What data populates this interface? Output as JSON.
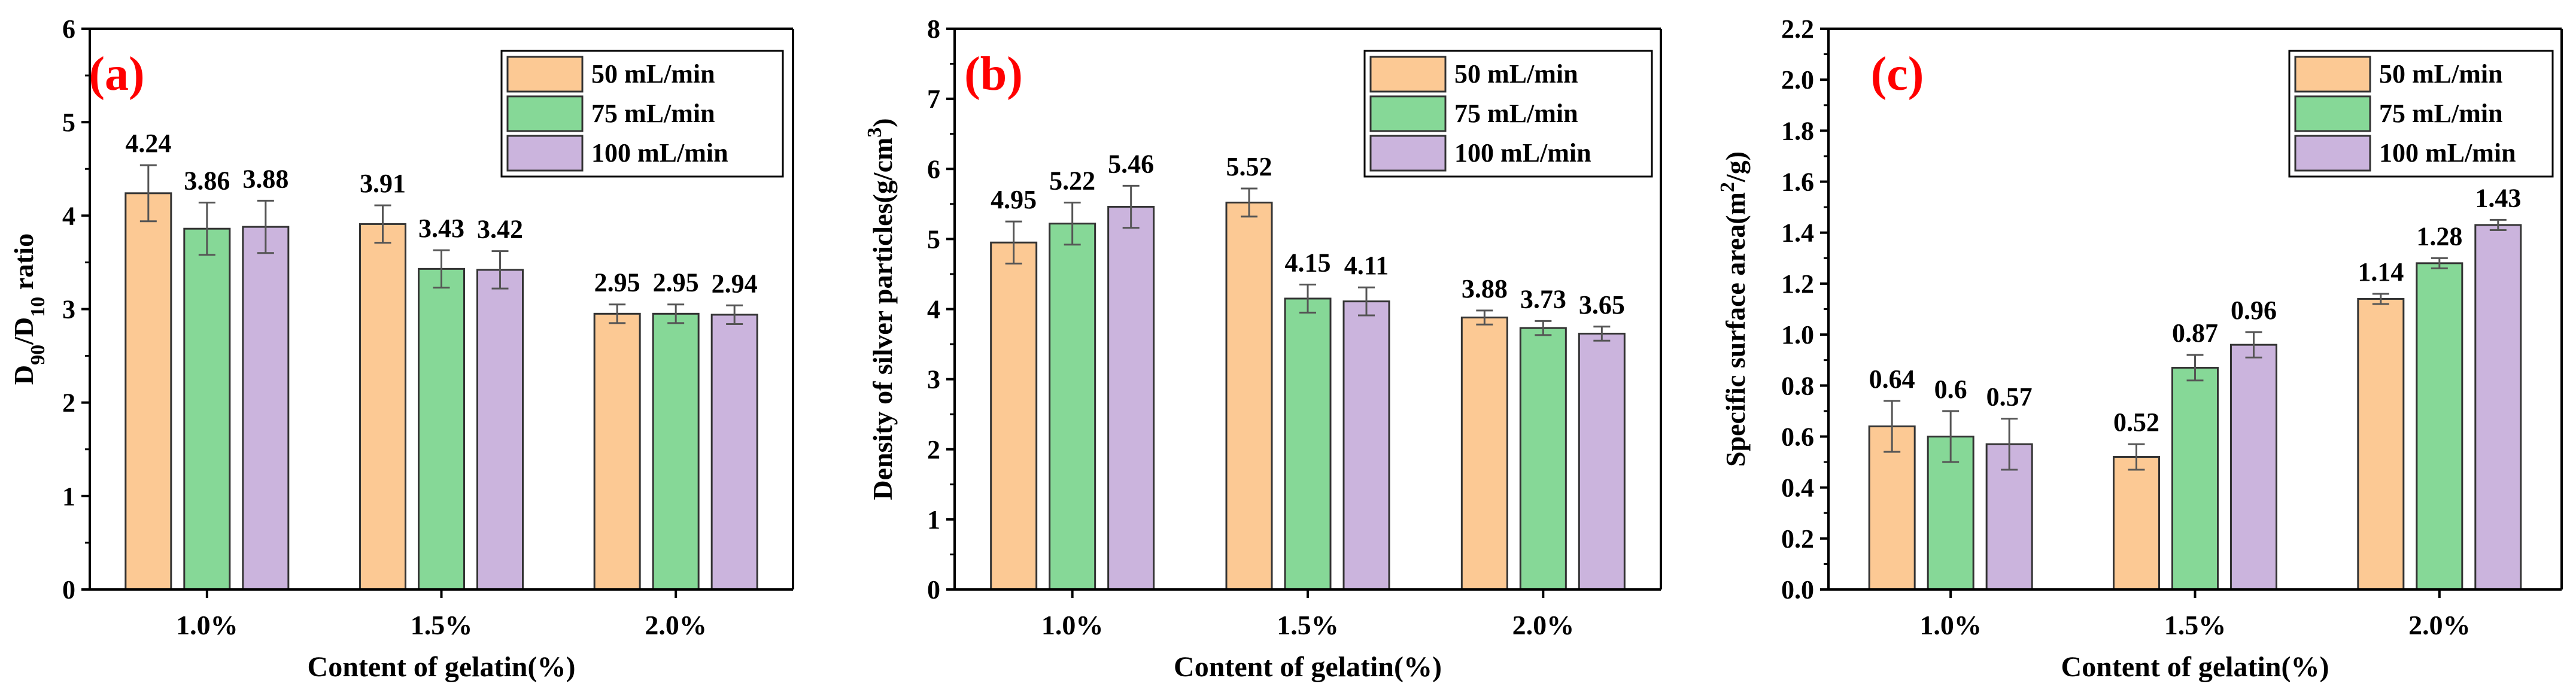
{
  "chart_data": [
    {
      "type": "bar",
      "panel_label": "(a)",
      "title": "",
      "xlabel": "Content of gelatin(%)",
      "ylabel": {
        "parts": [
          {
            "text": "D",
            "sub": false
          },
          {
            "text": "90",
            "sub": true
          },
          {
            "text": "/D",
            "sub": false
          },
          {
            "text": "10",
            "sub": true
          },
          {
            "text": " ratio",
            "sub": false
          }
        ]
      },
      "categories": [
        "1.0%",
        "1.5%",
        "2.0%"
      ],
      "ylim": [
        0,
        6
      ],
      "yticks": [
        "0",
        "1",
        "2",
        "3",
        "4",
        "5",
        "6"
      ],
      "series": [
        {
          "name": "50 mL/min",
          "values": [
            4.24,
            3.91,
            2.95
          ],
          "errors": [
            0.3,
            0.2,
            0.1
          ],
          "labels": [
            "4.24",
            "3.91",
            "2.95"
          ],
          "color": "#FCC994"
        },
        {
          "name": "75 mL/min",
          "values": [
            3.86,
            3.43,
            2.95
          ],
          "errors": [
            0.28,
            0.2,
            0.1
          ],
          "labels": [
            "3.86",
            "3.43",
            "2.95"
          ],
          "color": "#86D897"
        },
        {
          "name": "100 mL/min",
          "values": [
            3.88,
            3.42,
            2.94
          ],
          "errors": [
            0.28,
            0.2,
            0.1
          ],
          "labels": [
            "3.88",
            "3.42",
            "2.94"
          ],
          "color": "#CBB4DD"
        }
      ],
      "legend_position": "top-right"
    },
    {
      "type": "bar",
      "panel_label": "(b)",
      "title": "",
      "xlabel": "Content of gelatin(%)",
      "ylabel": {
        "parts": [
          {
            "text": "Density of silver particles(g/cm",
            "sub": false
          },
          {
            "text": "3",
            "sup": true
          },
          {
            "text": ")",
            "sub": false
          }
        ]
      },
      "categories": [
        "1.0%",
        "1.5%",
        "2.0%"
      ],
      "ylim": [
        0,
        8
      ],
      "yticks": [
        "0",
        "1",
        "2",
        "3",
        "4",
        "5",
        "6",
        "7",
        "8"
      ],
      "series": [
        {
          "name": "50 mL/min",
          "values": [
            4.95,
            5.52,
            3.88
          ],
          "errors": [
            0.3,
            0.2,
            0.1
          ],
          "labels": [
            "4.95",
            "5.52",
            "3.88"
          ],
          "color": "#FCC994"
        },
        {
          "name": "75 mL/min",
          "values": [
            5.22,
            4.15,
            3.73
          ],
          "errors": [
            0.3,
            0.2,
            0.1
          ],
          "labels": [
            "5.22",
            "4.15",
            "3.73"
          ],
          "color": "#86D897"
        },
        {
          "name": "100 mL/min",
          "values": [
            5.46,
            4.11,
            3.65
          ],
          "errors": [
            0.3,
            0.2,
            0.1
          ],
          "labels": [
            "5.46",
            "4.11",
            "3.65"
          ],
          "color": "#CBB4DD"
        }
      ],
      "legend_position": "top-right"
    },
    {
      "type": "bar",
      "panel_label": "(c)",
      "title": "",
      "xlabel": "Content of gelatin(%)",
      "ylabel": {
        "parts": [
          {
            "text": "Specific surface area(m",
            "sub": false
          },
          {
            "text": "2",
            "sup": true
          },
          {
            "text": "/g)",
            "sub": false
          }
        ]
      },
      "categories": [
        "1.0%",
        "1.5%",
        "2.0%"
      ],
      "ylim": [
        0,
        2.2
      ],
      "yticks": [
        "0.0",
        "0.2",
        "0.4",
        "0.6",
        "0.8",
        "1.0",
        "1.2",
        "1.4",
        "1.6",
        "1.8",
        "2.0",
        "2.2"
      ],
      "series": [
        {
          "name": "50 mL/min",
          "values": [
            0.64,
            0.52,
            1.14
          ],
          "errors": [
            0.1,
            0.05,
            0.02
          ],
          "labels": [
            "0.64",
            "0.52",
            "1.14"
          ],
          "color": "#FCC994"
        },
        {
          "name": "75 mL/min",
          "values": [
            0.6,
            0.87,
            1.28
          ],
          "errors": [
            0.1,
            0.05,
            0.02
          ],
          "labels": [
            "0.6",
            "0.87",
            "1.28"
          ],
          "color": "#86D897"
        },
        {
          "name": "100 mL/min",
          "values": [
            0.57,
            0.96,
            1.43
          ],
          "errors": [
            0.1,
            0.05,
            0.02
          ],
          "labels": [
            "0.57",
            "0.96",
            "1.43"
          ],
          "color": "#CBB4DD"
        }
      ],
      "legend_position": "top-right"
    }
  ],
  "colors": {
    "panel_label": "#FF0000",
    "axis": "#000000",
    "errorbar": "#555555"
  }
}
